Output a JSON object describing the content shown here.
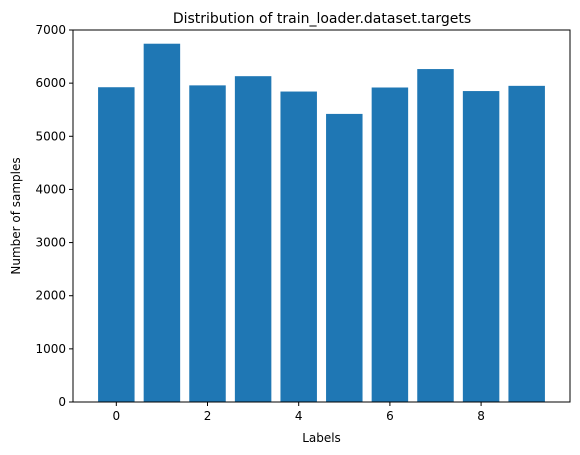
{
  "chart_data": {
    "type": "bar",
    "title": "Distribution of train_loader.dataset.targets",
    "xlabel": "Labels",
    "ylabel": "Number of samples",
    "categories": [
      0,
      1,
      2,
      3,
      4,
      5,
      6,
      7,
      8,
      9
    ],
    "values": [
      5923,
      6742,
      5958,
      6131,
      5842,
      5421,
      5918,
      6265,
      5851,
      5949
    ],
    "xlim": [
      -0.95,
      9.95
    ],
    "ylim": [
      0,
      7000
    ],
    "xticks": [
      0,
      2,
      4,
      6,
      8
    ],
    "yticks": [
      0,
      1000,
      2000,
      3000,
      4000,
      5000,
      6000,
      7000
    ],
    "bar_color": "#1f77b4",
    "grid": false,
    "legend": "none"
  }
}
